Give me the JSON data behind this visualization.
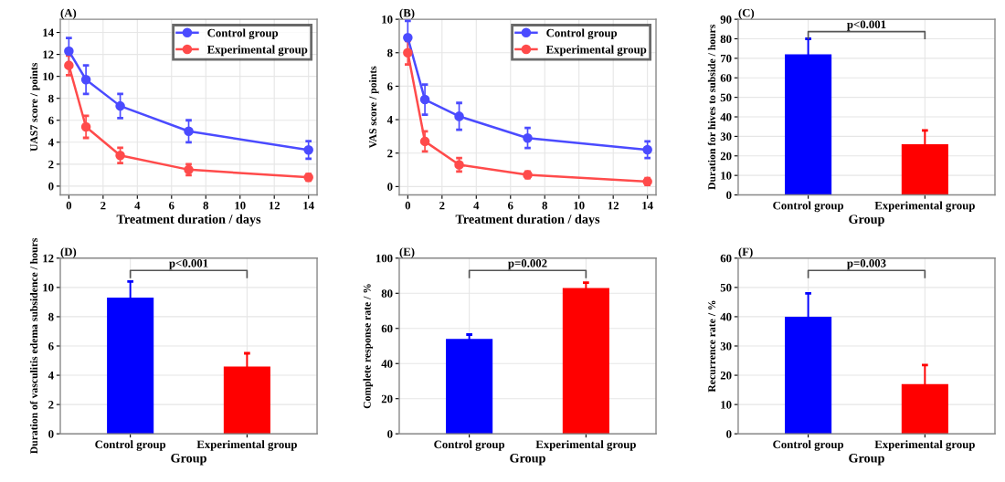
{
  "chart_data": [
    {
      "type": "line",
      "title": "(A)",
      "xlabel": "Treatment duration / days",
      "ylabel": "UAS7 score / points",
      "x": [
        0,
        1,
        3,
        7,
        14
      ],
      "xlim": [
        -0.5,
        14.5
      ],
      "xticks": [
        0,
        2,
        4,
        6,
        8,
        10,
        12,
        14
      ],
      "ylim": [
        -0.8,
        15.2
      ],
      "yticks": [
        0,
        2,
        4,
        6,
        8,
        10,
        12,
        14
      ],
      "grid": true,
      "legend": "top right",
      "marker": "circle",
      "series": [
        {
          "name": "Control group",
          "color": "#4b4bff",
          "values": [
            12.3,
            9.7,
            7.3,
            5.0,
            3.3
          ],
          "errors": [
            1.2,
            1.3,
            1.1,
            1.0,
            0.8
          ]
        },
        {
          "name": "Experimental group",
          "color": "#ff4b4b",
          "values": [
            11.0,
            5.4,
            2.8,
            1.5,
            0.8
          ],
          "errors": [
            0.9,
            1.0,
            0.7,
            0.5,
            0.3
          ]
        }
      ]
    },
    {
      "type": "line",
      "title": "(B)",
      "xlabel": "Treatment duration / days",
      "ylabel": "VAS score / points",
      "x": [
        0,
        1,
        3,
        7,
        14
      ],
      "xlim": [
        -0.5,
        14.5
      ],
      "xticks": [
        0,
        2,
        4,
        6,
        8,
        10,
        12,
        14
      ],
      "ylim": [
        -0.5,
        10
      ],
      "yticks": [
        0,
        2,
        4,
        6,
        8,
        10
      ],
      "grid": true,
      "legend": "top right",
      "marker": "circle",
      "series": [
        {
          "name": "Control group",
          "color": "#4b4bff",
          "values": [
            8.9,
            5.2,
            4.2,
            2.9,
            2.2
          ],
          "errors": [
            1.0,
            0.9,
            0.8,
            0.6,
            0.5
          ]
        },
        {
          "name": "Experimental group",
          "color": "#ff4b4b",
          "values": [
            8.0,
            2.7,
            1.3,
            0.7,
            0.3
          ],
          "errors": [
            0.7,
            0.6,
            0.4,
            0.2,
            0.2
          ]
        }
      ]
    },
    {
      "type": "bar",
      "title": "(C)",
      "xlabel": "Group",
      "ylabel": "Duration for hives to subside / hours",
      "categories": [
        "Control group",
        "Experimental group"
      ],
      "values": [
        72,
        26
      ],
      "errors": [
        8,
        7
      ],
      "colors": [
        "#0000ff",
        "#ff0000"
      ],
      "ylim": [
        0,
        90
      ],
      "yticks": [
        0,
        10,
        20,
        30,
        40,
        50,
        60,
        70,
        80,
        90
      ],
      "grid": true,
      "annotations": [
        "p<0.001"
      ]
    },
    {
      "type": "bar",
      "title": "(D)",
      "xlabel": "Group",
      "ylabel": "Duration of vasculitis edema subsidence / hours",
      "categories": [
        "Control group",
        "Experimental group"
      ],
      "values": [
        9.3,
        4.6
      ],
      "errors": [
        1.1,
        0.9
      ],
      "colors": [
        "#0000ff",
        "#ff0000"
      ],
      "ylim": [
        0,
        12
      ],
      "yticks": [
        0,
        2,
        4,
        6,
        8,
        10,
        12
      ],
      "grid": true,
      "annotations": [
        "p<0.001"
      ]
    },
    {
      "type": "bar",
      "title": "(E)",
      "xlabel": "Group",
      "ylabel": "Complete response rate / %",
      "categories": [
        "Control group",
        "Experimental group"
      ],
      "values": [
        54,
        83
      ],
      "errors": [
        2.5,
        3
      ],
      "colors": [
        "#0000ff",
        "#ff0000"
      ],
      "ylim": [
        0,
        100
      ],
      "yticks": [
        0,
        20,
        40,
        60,
        80,
        100
      ],
      "grid": true,
      "annotations": [
        "p=0.002"
      ]
    },
    {
      "type": "bar",
      "title": "(F)",
      "xlabel": "Group",
      "ylabel": "Recurrence rate / %",
      "categories": [
        "Control group",
        "Experimental group"
      ],
      "values": [
        40,
        17
      ],
      "errors": [
        8,
        6.5
      ],
      "colors": [
        "#0000ff",
        "#ff0000"
      ],
      "ylim": [
        0,
        60
      ],
      "yticks": [
        0,
        10,
        20,
        30,
        40,
        50,
        60
      ],
      "grid": true,
      "annotations": [
        "p=0.003"
      ]
    }
  ]
}
